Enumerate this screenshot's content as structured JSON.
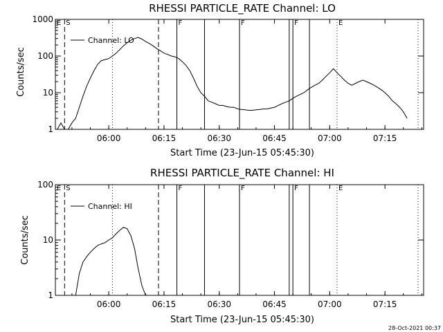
{
  "window": {
    "footer_timestamp": "28-Oct-2021 00:37"
  },
  "chart_data": [
    {
      "type": "line",
      "title": "RHESSI PARTICLE_RATE Channel: LO",
      "xlabel": "Start Time (23-Jun-15 05:45:30)",
      "ylabel": "Counts/sec",
      "yscale": "log",
      "ylim": [
        1,
        1000
      ],
      "xlim": [
        "05:45:30",
        "07:25:30"
      ],
      "x_ticks": [
        "06:00",
        "06:15",
        "06:30",
        "06:45",
        "07:00",
        "07:15"
      ],
      "y_ticks": [
        "1",
        "10",
        "100",
        "1000"
      ],
      "legend": {
        "position": "top-left",
        "entries": [
          "Channel: LO"
        ]
      },
      "series": [
        {
          "name": "Channel: LO",
          "x": [
            "05:46:00",
            "05:47:00",
            "05:48:00",
            "05:49:00",
            "05:50:00",
            "05:51:00",
            "05:52:00",
            "05:53:00",
            "05:54:00",
            "05:55:00",
            "05:56:00",
            "05:57:00",
            "05:58:00",
            "05:59:00",
            "06:00:00",
            "06:01:00",
            "06:02:00",
            "06:03:00",
            "06:04:00",
            "06:05:00",
            "06:06:00",
            "06:07:00",
            "06:08:00",
            "06:09:00",
            "06:10:00",
            "06:11:00",
            "06:12:00",
            "06:13:00",
            "06:14:00",
            "06:15:00",
            "06:16:00",
            "06:17:00",
            "06:18:00",
            "06:19:00",
            "06:20:00",
            "06:21:00",
            "06:22:00",
            "06:23:00",
            "06:24:00",
            "06:25:00",
            "06:26:00",
            "06:27:00",
            "06:28:00",
            "06:29:00",
            "06:30:00",
            "06:31:00",
            "06:32:00",
            "06:33:00",
            "06:34:00",
            "06:35:00",
            "06:36:00",
            "06:37:00",
            "06:38:00",
            "06:39:00",
            "06:40:00",
            "06:41:00",
            "06:42:00",
            "06:43:00",
            "06:44:00",
            "06:45:00",
            "06:46:00",
            "06:47:00",
            "06:48:00",
            "06:49:00",
            "06:50:00",
            "06:51:00",
            "06:52:00",
            "06:53:00",
            "06:54:00",
            "06:55:00",
            "06:56:00",
            "06:57:00",
            "06:58:00",
            "06:59:00",
            "07:00:00",
            "07:01:00",
            "07:02:00",
            "07:03:00",
            "07:04:00",
            "07:05:00",
            "07:06:00",
            "07:07:00",
            "07:08:00",
            "07:09:00",
            "07:10:00",
            "07:11:00",
            "07:12:00",
            "07:13:00",
            "07:14:00",
            "07:15:00",
            "07:16:00",
            "07:17:00",
            "07:18:00",
            "07:19:00",
            "07:20:00",
            "07:21:00"
          ],
          "values": [
            1,
            1.5,
            1,
            1,
            1.5,
            2,
            4,
            8,
            15,
            25,
            40,
            60,
            75,
            80,
            85,
            100,
            120,
            150,
            190,
            230,
            270,
            300,
            320,
            290,
            250,
            220,
            190,
            160,
            140,
            120,
            110,
            100,
            95,
            85,
            70,
            55,
            40,
            25,
            15,
            10,
            8,
            6,
            5.5,
            5,
            4.5,
            4.5,
            4.2,
            4,
            4,
            3.6,
            3.5,
            3.4,
            3.3,
            3.3,
            3.4,
            3.5,
            3.6,
            3.6,
            3.8,
            4,
            4.5,
            5,
            5.5,
            6,
            7,
            8,
            9,
            10,
            12,
            14,
            16,
            18,
            22,
            28,
            35,
            45,
            35,
            28,
            22,
            18,
            16,
            18,
            20,
            22,
            20,
            18,
            16,
            14,
            12,
            10,
            8,
            6,
            5,
            4,
            3,
            2
          ]
        }
      ],
      "markers": [
        {
          "label": "E",
          "time": "05:45:30",
          "style": "dotted"
        },
        {
          "label": "S",
          "time": "05:48:00",
          "style": "dashed"
        },
        {
          "label": "",
          "time": "06:01:00",
          "style": "dotted"
        },
        {
          "label": "",
          "time": "06:13:30",
          "style": "dashed"
        },
        {
          "label": "F",
          "time": "06:18:30",
          "style": "solid"
        },
        {
          "label": "",
          "time": "06:26:00",
          "style": "solid"
        },
        {
          "label": "F",
          "time": "06:35:30",
          "style": "solid"
        },
        {
          "label": "",
          "time": "06:49:00",
          "style": "solid"
        },
        {
          "label": "F",
          "time": "06:50:00",
          "style": "solid"
        },
        {
          "label": "",
          "time": "06:54:30",
          "style": "solid"
        },
        {
          "label": "E",
          "time": "07:02:00",
          "style": "dotted"
        },
        {
          "label": "",
          "time": "07:24:00",
          "style": "dotted"
        }
      ]
    },
    {
      "type": "line",
      "title": "RHESSI PARTICLE_RATE Channel: HI",
      "xlabel": "Start Time (23-Jun-15 05:45:30)",
      "ylabel": "Counts/sec",
      "yscale": "log",
      "ylim": [
        1,
        100
      ],
      "xlim": [
        "05:45:30",
        "07:25:30"
      ],
      "x_ticks": [
        "06:00",
        "06:15",
        "06:30",
        "06:45",
        "07:00",
        "07:15"
      ],
      "y_ticks": [
        "1",
        "10",
        "100"
      ],
      "legend": {
        "position": "top-left",
        "entries": [
          "Channel: HI"
        ]
      },
      "series": [
        {
          "name": "Channel: HI",
          "x": [
            "05:51:00",
            "05:52:00",
            "05:53:00",
            "05:54:00",
            "05:55:00",
            "05:56:00",
            "05:57:00",
            "05:58:00",
            "05:59:00",
            "06:00:00",
            "06:01:00",
            "06:02:00",
            "06:03:00",
            "06:04:00",
            "06:05:00",
            "06:06:00",
            "06:07:00",
            "06:08:00",
            "06:09:00",
            "06:10:00"
          ],
          "values": [
            1,
            2.5,
            4,
            5,
            6,
            7,
            8,
            8.5,
            9,
            10,
            11,
            13,
            15,
            17,
            16,
            12,
            7,
            3,
            1.5,
            1
          ]
        }
      ],
      "markers": [
        {
          "label": "E",
          "time": "05:45:30",
          "style": "dotted"
        },
        {
          "label": "S",
          "time": "05:48:00",
          "style": "dashed"
        },
        {
          "label": "",
          "time": "06:01:00",
          "style": "dotted"
        },
        {
          "label": "",
          "time": "06:13:30",
          "style": "dashed"
        },
        {
          "label": "F",
          "time": "06:18:30",
          "style": "solid"
        },
        {
          "label": "",
          "time": "06:26:00",
          "style": "solid"
        },
        {
          "label": "F",
          "time": "06:35:30",
          "style": "solid"
        },
        {
          "label": "",
          "time": "06:49:00",
          "style": "solid"
        },
        {
          "label": "F",
          "time": "06:50:00",
          "style": "solid"
        },
        {
          "label": "",
          "time": "06:54:30",
          "style": "solid"
        },
        {
          "label": "E",
          "time": "07:02:00",
          "style": "dotted"
        },
        {
          "label": "",
          "time": "07:24:00",
          "style": "dotted"
        }
      ]
    }
  ]
}
